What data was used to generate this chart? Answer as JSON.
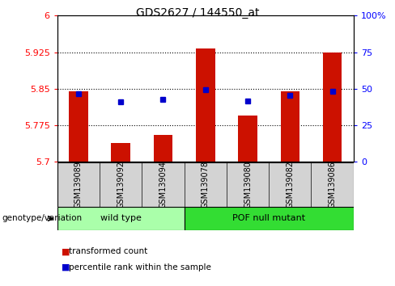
{
  "title": "GDS2627 / 144550_at",
  "samples": [
    "GSM139089",
    "GSM139092",
    "GSM139094",
    "GSM139078",
    "GSM139080",
    "GSM139082",
    "GSM139086"
  ],
  "bar_values": [
    5.845,
    5.738,
    5.755,
    5.932,
    5.795,
    5.845,
    5.924
  ],
  "percentile_values": [
    5.84,
    5.823,
    5.828,
    5.848,
    5.824,
    5.836,
    5.844
  ],
  "bar_base": 5.7,
  "ylim": [
    5.7,
    6.0
  ],
  "y_ticks": [
    5.7,
    5.775,
    5.85,
    5.925,
    6.0
  ],
  "y_tick_labels": [
    "5.7",
    "5.775",
    "5.85",
    "5.925",
    "6"
  ],
  "right_y_ticks": [
    0,
    25,
    50,
    75,
    100
  ],
  "right_y_labels": [
    "0",
    "25",
    "50",
    "75",
    "100%"
  ],
  "dotted_lines": [
    5.775,
    5.85,
    5.925
  ],
  "groups": [
    {
      "label": "wild type",
      "indices": [
        0,
        1,
        2
      ],
      "color": "#aaffaa"
    },
    {
      "label": "POF null mutant",
      "indices": [
        3,
        4,
        5,
        6
      ],
      "color": "#33dd33"
    }
  ],
  "bar_color": "#cc1100",
  "percentile_color": "#0000cc",
  "bar_width": 0.45,
  "label_transformed": "transformed count",
  "label_percentile": "percentile rank within the sample",
  "genotype_label": "genotype/variation"
}
